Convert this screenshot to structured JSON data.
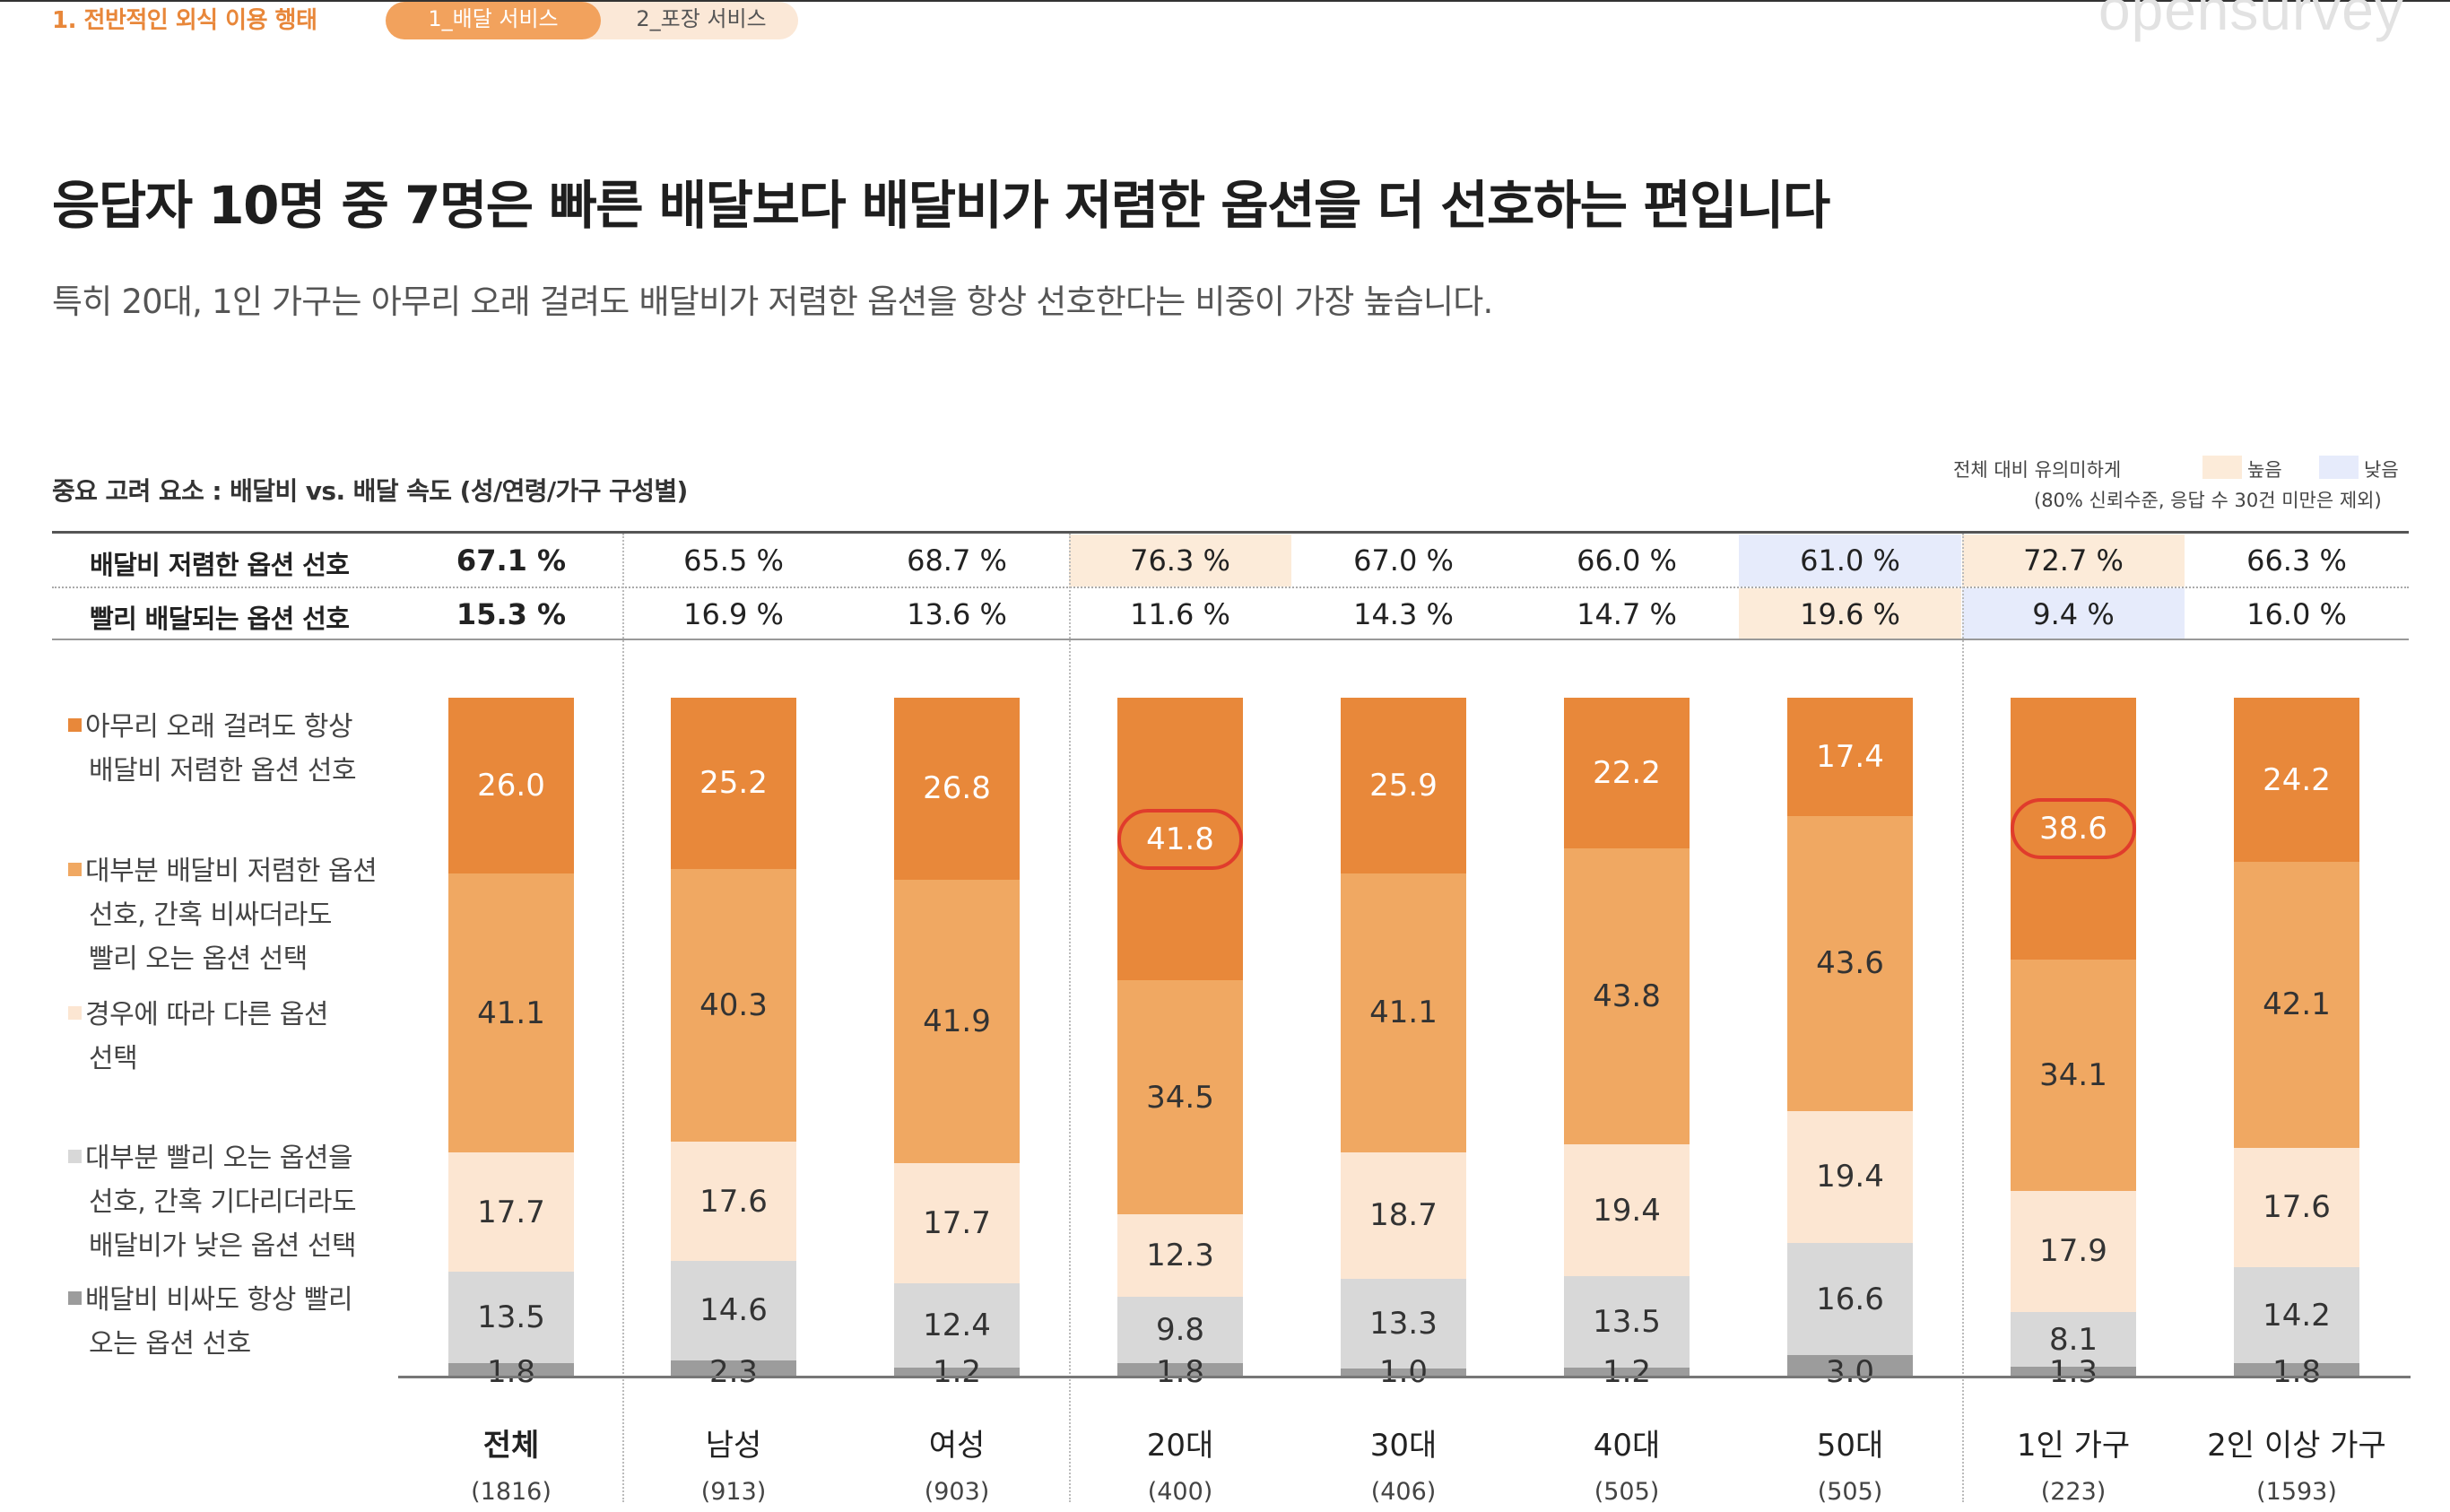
{
  "nav": {
    "breadcrumb": "1. 전반적인 외식 이용 행태",
    "tabs": [
      {
        "label": "1_배달 서비스",
        "active": true
      },
      {
        "label": "2_포장 서비스",
        "active": false
      }
    ],
    "logo": "opensurvey"
  },
  "headline": "응답자 10명 중 7명은 빠른 배달보다 배달비가 저렴한 옵션을 더 선호하는 편입니다",
  "subheadline": "특히 20대, 1인 가구는 아무리 오래 걸려도 배달비가 저렴한 옵션을 항상 선호한다는 비중이 가장 높습니다.",
  "chart_title": "중요 고려 요소 : 배달비 vs. 배달 속도 (성/연령/가구 구성별)",
  "significance": {
    "title": "전체 대비 유의미하게",
    "note": "(80% 신뢰수준, 응답 수 30건 미만은 제외)",
    "high_label": "높음",
    "low_label": "낮음",
    "high_color": "#fcebd9",
    "low_color": "#e6ebfb"
  },
  "summary_rows": [
    {
      "label": "배달비 저렴한 옵션 선호",
      "values": [
        "67.1 %",
        "65.5 %",
        "68.7 %",
        "76.3 %",
        "67.0 %",
        "66.0 %",
        "61.0 %",
        "72.7 %",
        "66.3 %"
      ],
      "highlight": [
        "",
        "",
        "",
        "high",
        "",
        "",
        "low",
        "high",
        ""
      ]
    },
    {
      "label": "빨리 배달되는 옵션 선호",
      "values": [
        "15.3 %",
        "16.9 %",
        "13.6 %",
        "11.6 %",
        "14.3 %",
        "14.7 %",
        "19.6 %",
        "9.4 %",
        "16.0 %"
      ],
      "highlight": [
        "",
        "",
        "",
        "",
        "",
        "",
        "high",
        "low",
        ""
      ]
    }
  ],
  "legend": [
    {
      "lines": [
        "아무리 오래 걸려도 항상",
        "배달비 저렴한 옵션 선호"
      ],
      "color": "#e8883a"
    },
    {
      "lines": [
        "대부분 배달비 저렴한 옵션",
        "선호,  간혹 비싸더라도",
        "빨리 오는 옵션 선택"
      ],
      "color": "#f0a862"
    },
    {
      "lines": [
        "경우에 따라 다른 옵션",
        "선택"
      ],
      "color": "#fce6d2"
    },
    {
      "lines": [
        "대부분 빨리 오는 옵션을",
        "선호, 간혹 기다리더라도",
        "배달비가 낮은 옵션 선택"
      ],
      "color": "#d8d8d8"
    },
    {
      "lines": [
        "배달비 비싸도 항상 빨리",
        "오는 옵션 선호"
      ],
      "color": "#9c9c9c"
    }
  ],
  "chart_data": {
    "type": "bar",
    "stacked": true,
    "orientation": "vertical",
    "unit": "%",
    "categories": [
      "전체",
      "남성",
      "여성",
      "20대",
      "30대",
      "40대",
      "50대",
      "1인 가구",
      "2인 이상 가구"
    ],
    "sample_sizes": [
      "(1816)",
      "(913)",
      "(903)",
      "(400)",
      "(406)",
      "(505)",
      "(505)",
      "(223)",
      "(1593)"
    ],
    "series": [
      {
        "name": "아무리 오래 걸려도 항상 배달비 저렴한 옵션 선호",
        "color": "#e8883a",
        "values": [
          26.0,
          25.2,
          26.8,
          41.8,
          25.9,
          22.2,
          17.4,
          38.6,
          24.2
        ]
      },
      {
        "name": "대부분 배달비 저렴한 옵션 선호,  간혹 비싸더라도 빨리 오는 옵션 선택",
        "color": "#f0a862",
        "values": [
          41.1,
          40.3,
          41.9,
          34.5,
          41.1,
          43.8,
          43.6,
          34.1,
          42.1
        ]
      },
      {
        "name": "경우에 따라 다른 옵션 선택",
        "color": "#fce6d2",
        "values": [
          17.7,
          17.6,
          17.7,
          12.3,
          18.7,
          19.4,
          19.4,
          17.9,
          17.6
        ]
      },
      {
        "name": "대부분 빨리 오는 옵션을 선호, 간혹 기다리더라도 배달비가 낮은 옵션 선택",
        "color": "#d8d8d8",
        "values": [
          13.5,
          14.6,
          12.4,
          9.8,
          13.3,
          13.5,
          16.6,
          8.1,
          14.2
        ]
      },
      {
        "name": "배달비 비싸도 항상 빨리 오는 옵션 선호",
        "color": "#9c9c9c",
        "values": [
          1.8,
          2.3,
          1.2,
          1.8,
          1.0,
          1.2,
          3.0,
          1.3,
          1.8
        ]
      }
    ],
    "circled": [
      {
        "category": "20대",
        "value": 41.8
      },
      {
        "category": "1인 가구",
        "value": 38.6
      }
    ],
    "ylim": [
      0,
      100
    ]
  }
}
